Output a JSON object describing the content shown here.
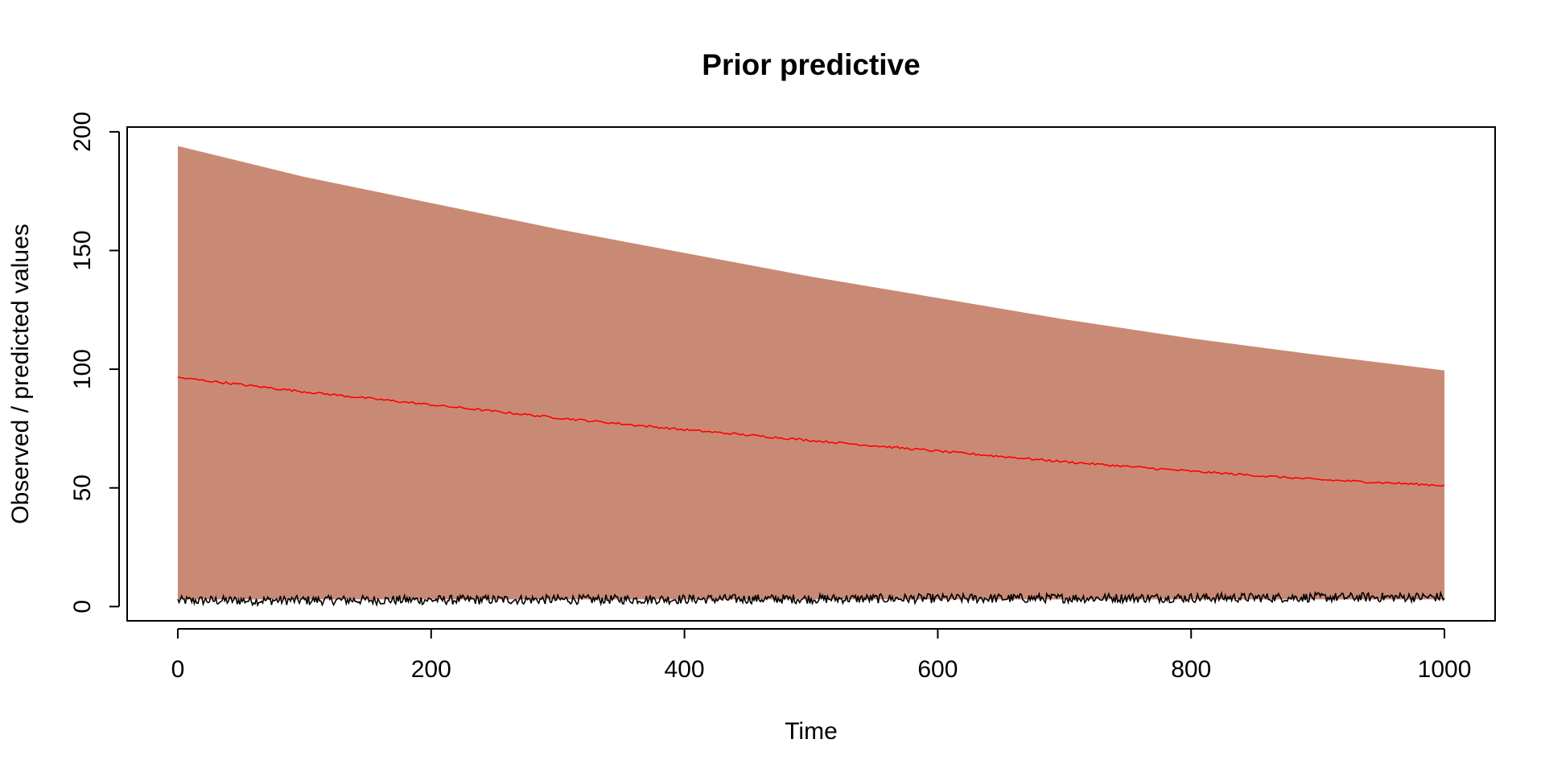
{
  "chart_data": {
    "type": "area",
    "title": "Prior predictive",
    "xlabel": "Time",
    "ylabel": "Observed / predicted values",
    "xlim": [
      -40,
      1040
    ],
    "ylim": [
      -6,
      202
    ],
    "x_ticks": [
      0,
      200,
      400,
      600,
      800,
      1000
    ],
    "y_ticks": [
      0,
      50,
      100,
      150,
      200
    ],
    "grid": false,
    "legend": "none",
    "colors": {
      "band": "#c98a75",
      "mean_line": "#ff0000",
      "observed": "#000000"
    },
    "series": [
      {
        "kind": "band",
        "x": [
          0,
          100,
          200,
          300,
          400,
          500,
          600,
          700,
          800,
          900,
          1000
        ],
        "lower": [
          3,
          3,
          3,
          3,
          3,
          3,
          3,
          3,
          3,
          3,
          3
        ],
        "upper": [
          194,
          181,
          170,
          159,
          149,
          139,
          130,
          121,
          113,
          106,
          99.5
        ]
      },
      {
        "kind": "line",
        "x": [
          0,
          100,
          200,
          300,
          400,
          500,
          600,
          700,
          800,
          900,
          1000
        ],
        "y": [
          96.5,
          90.5,
          85,
          79.5,
          74.5,
          70,
          65.5,
          61,
          57,
          53.5,
          51
        ]
      },
      {
        "kind": "observed",
        "x_range": [
          0,
          1000
        ],
        "y_center_start": 2.5,
        "y_center_end": 4,
        "y_jitter": 2
      }
    ]
  }
}
